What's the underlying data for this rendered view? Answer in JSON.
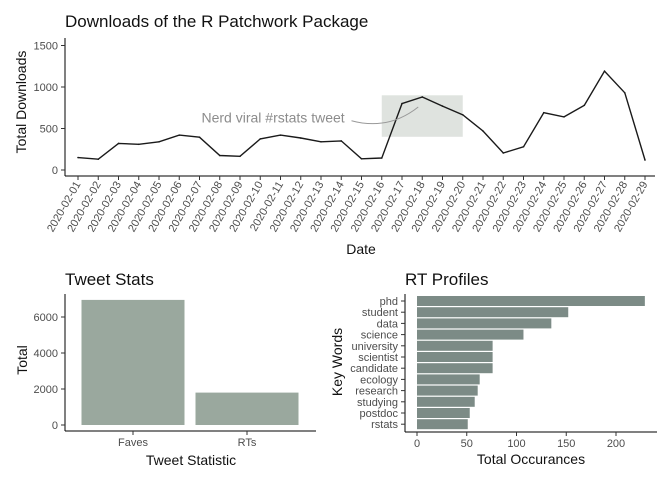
{
  "chart_data": [
    {
      "type": "line",
      "title": "Downloads of the R Patchwork Package",
      "xlabel": "Date",
      "ylabel": "Total Downloads",
      "ylim": [
        0,
        1550
      ],
      "yticks": [
        0,
        500,
        1000,
        1500
      ],
      "grid": false,
      "colors": {
        "line": "#1a1a1a",
        "highlight": "#dfe3df",
        "annotation": "#999999"
      },
      "x": [
        "2020-02-01",
        "2020-02-02",
        "2020-02-03",
        "2020-02-04",
        "2020-02-05",
        "2020-02-06",
        "2020-02-07",
        "2020-02-08",
        "2020-02-09",
        "2020-02-10",
        "2020-02-11",
        "2020-02-12",
        "2020-02-13",
        "2020-02-14",
        "2020-02-15",
        "2020-02-16",
        "2020-02-17",
        "2020-02-18",
        "2020-02-19",
        "2020-02-20",
        "2020-02-21",
        "2020-02-22",
        "2020-02-23",
        "2020-02-24",
        "2020-02-25",
        "2020-02-26",
        "2020-02-27",
        "2020-02-28",
        "2020-02-29"
      ],
      "values": [
        150,
        130,
        320,
        310,
        340,
        420,
        395,
        175,
        165,
        375,
        420,
        385,
        340,
        350,
        135,
        145,
        800,
        880,
        770,
        665,
        470,
        205,
        280,
        690,
        640,
        780,
        1190,
        930,
        120
      ],
      "highlight": {
        "x_start": "2020-02-16",
        "x_end": "2020-02-20",
        "y_range": [
          400,
          900
        ]
      },
      "annotation": {
        "text": "Nerd viral #rstats tweet",
        "x": "2020-02-07",
        "y": 630
      }
    },
    {
      "type": "bar",
      "title": "Tweet Stats",
      "xlabel": "Tweet Statistic",
      "ylabel": "Total",
      "categories": [
        "Faves",
        "RTs"
      ],
      "values": [
        6950,
        1800
      ],
      "ylim": [
        0,
        7200
      ],
      "yticks": [
        0,
        2000,
        4000,
        6000
      ],
      "grid": false,
      "colors": {
        "bar": "#9aa89e"
      }
    },
    {
      "type": "bar",
      "orientation": "horizontal",
      "title": "RT Profiles",
      "xlabel": "Total Occurances",
      "ylabel": "Key Words",
      "categories": [
        "phd",
        "student",
        "data",
        "science",
        "university",
        "scientist",
        "candidate",
        "ecology",
        "research",
        "studying",
        "postdoc",
        "rstats"
      ],
      "values": [
        229,
        152,
        135,
        107,
        76,
        76,
        76,
        63,
        61,
        58,
        53,
        51
      ],
      "xlim": [
        -12,
        240
      ],
      "xticks": [
        0,
        50,
        100,
        150,
        200
      ],
      "grid": false,
      "colors": {
        "bar": "#7c8b86"
      }
    }
  ]
}
